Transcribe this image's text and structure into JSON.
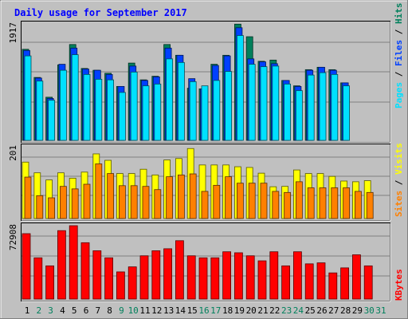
{
  "chart_data": [
    {
      "type": "bar",
      "title": "Daily usage for September 2017",
      "max_label": "1917",
      "legend": [
        {
          "name": "Pages",
          "color": "#00e0ff"
        },
        {
          "name": "Files",
          "color": "#0040ff"
        },
        {
          "name": "Hits",
          "color": "#00805c"
        }
      ],
      "categories": [
        "1",
        "2",
        "3",
        "4",
        "5",
        "6",
        "7",
        "8",
        "9",
        "10",
        "11",
        "12",
        "13",
        "14",
        "15",
        "16",
        "17",
        "18",
        "19",
        "20",
        "21",
        "22",
        "23",
        "24",
        "25",
        "26",
        "27",
        "28",
        "29",
        "30",
        "31"
      ],
      "weekend": [
        2,
        3,
        9,
        10,
        16,
        17,
        23,
        24,
        30,
        31
      ],
      "ylim": [
        0,
        1917
      ],
      "series": [
        {
          "name": "Hits",
          "values": [
            1520,
            1050,
            720,
            1260,
            1600,
            1200,
            1170,
            1120,
            900,
            1290,
            1010,
            1070,
            1600,
            1420,
            870,
            860,
            1270,
            1420,
            1940,
            1730,
            1320,
            1340,
            1000,
            910,
            1180,
            1220,
            1180,
            960,
            null,
            null,
            null
          ]
        },
        {
          "name": "Files",
          "values": [
            1500,
            1040,
            700,
            1270,
            1540,
            1190,
            1170,
            1100,
            900,
            1240,
            1000,
            1060,
            1540,
            1420,
            1030,
            860,
            1250,
            1410,
            1880,
            1360,
            1310,
            1280,
            1000,
            900,
            1170,
            1220,
            1170,
            960,
            null,
            null,
            null
          ]
        },
        {
          "name": "Pages",
          "values": [
            1410,
            990,
            670,
            1170,
            1430,
            1100,
            1020,
            1010,
            800,
            1140,
            910,
            940,
            1360,
            1300,
            980,
            910,
            1000,
            1150,
            1750,
            1270,
            1230,
            1240,
            940,
            830,
            1090,
            1130,
            1100,
            910,
            null,
            null,
            null
          ]
        }
      ]
    },
    {
      "type": "bar",
      "max_label": "201",
      "legend": [
        {
          "name": "Sites",
          "color": "#ff8000"
        },
        {
          "name": "Visits",
          "color": "#ffff00"
        }
      ],
      "ylim": [
        0,
        201
      ],
      "series": [
        {
          "name": "Visits",
          "values": [
            158,
            128,
            108,
            128,
            113,
            130,
            181,
            163,
            126,
            126,
            138,
            122,
            164,
            168,
            196,
            150,
            150,
            150,
            145,
            143,
            127,
            89,
            90,
            136,
            126,
            126,
            118,
            105,
            103,
            106,
            null
          ]
        },
        {
          "name": "Sites",
          "values": [
            116,
            64,
            58,
            90,
            83,
            96,
            153,
            126,
            92,
            92,
            90,
            81,
            117,
            122,
            125,
            76,
            93,
            117,
            99,
            99,
            99,
            76,
            73,
            103,
            86,
            86,
            86,
            86,
            76,
            73,
            null
          ]
        }
      ]
    },
    {
      "type": "bar",
      "max_label": "72908",
      "legend": [
        {
          "name": "KBytes",
          "color": "#ff0000"
        }
      ],
      "ylim": [
        0,
        72908
      ],
      "series": [
        {
          "name": "KBytes",
          "values": [
            65000,
            41000,
            33000,
            68000,
            72908,
            56000,
            48000,
            41000,
            27000,
            32000,
            43000,
            48000,
            50000,
            58000,
            43000,
            41000,
            41000,
            47000,
            46000,
            43000,
            38000,
            47000,
            33000,
            47000,
            35000,
            36000,
            26000,
            31000,
            44000,
            33000,
            null
          ]
        }
      ]
    }
  ]
}
